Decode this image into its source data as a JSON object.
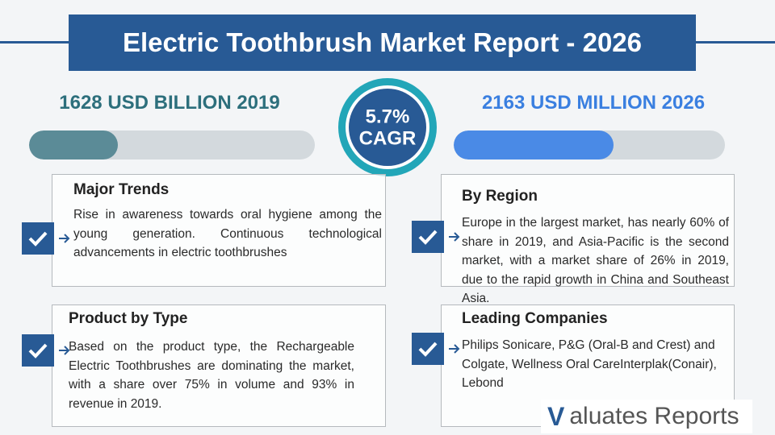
{
  "header": {
    "title": "Electric Toothbrush Market Report - 2026"
  },
  "stats": {
    "left": "1628 USD BILLION 2019",
    "right": "2163 USD MILLION 2026",
    "cagr_value": "5.7%",
    "cagr_label": "CAGR"
  },
  "sections": [
    {
      "heading": "Major Trends",
      "body": "Rise in awareness towards oral hygiene among the young generation. Continuous technological advancements in electric toothbrushes"
    },
    {
      "heading": "Product by Type",
      "body": "Based on the product type, the Rechargeable Electric Toothbrushes are dominating the market, with a share over 75% in volume and 93% in revenue in 2019."
    },
    {
      "heading": "By Region",
      "body": "Europe in the largest market, has nearly 60% of share in 2019, and Asia-Pacific is the second market, with a market share of 26% in 2019, due to the rapid growth in China and Southeast Asia."
    },
    {
      "heading": "Leading Companies",
      "body": "Philips Sonicare, P&G (Oral-B and Crest) and Colgate, Wellness Oral CareInterplak(Conair), Lebond"
    }
  ],
  "logo": {
    "mark": "V",
    "text": "aluates Reports"
  }
}
